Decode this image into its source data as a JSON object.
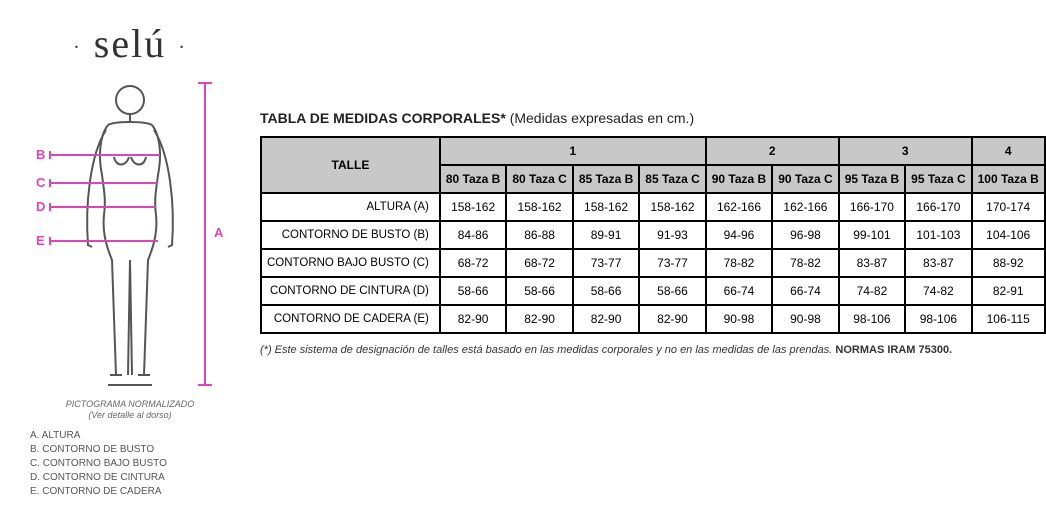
{
  "brand": "selú",
  "pictogram": {
    "caption_line1": "PICTOGRAMA NORMALIZADO",
    "caption_line2": "(Ver detalle al dorso)",
    "markers": {
      "A": "A",
      "B": "B",
      "C": "C",
      "D": "D",
      "E": "E"
    },
    "legend": [
      "A. ALTURA",
      "B. CONTORNO DE BUSTO",
      "C. CONTORNO BAJO BUSTO",
      "D. CONTORNO DE CINTURA",
      "E. CONTORNO DE CADERA"
    ],
    "accent_color": "#d946b8",
    "figure_stroke": "#555555"
  },
  "table": {
    "title_prefix": "TABLA DE MEDIDAS CORPORALES* ",
    "title_suffix": "(Medidas expresadas en cm.)",
    "talle_label": "TALLE",
    "header_bg": "#c8c8c8",
    "border_color": "#000000",
    "groups": [
      {
        "label": "1",
        "span": 4
      },
      {
        "label": "2",
        "span": 2
      },
      {
        "label": "3",
        "span": 2
      },
      {
        "label": "4",
        "span": 1
      }
    ],
    "subheaders": [
      "80 Taza B",
      "80 Taza C",
      "85 Taza B",
      "85 Taza C",
      "90 Taza B",
      "90 Taza C",
      "95 Taza B",
      "95 Taza C",
      "100 Taza B"
    ],
    "rows": [
      {
        "label": "ALTURA (A)",
        "values": [
          "158-162",
          "158-162",
          "158-162",
          "158-162",
          "162-166",
          "162-166",
          "166-170",
          "166-170",
          "170-174"
        ]
      },
      {
        "label": "CONTORNO DE BUSTO (B)",
        "values": [
          "84-86",
          "86-88",
          "89-91",
          "91-93",
          "94-96",
          "96-98",
          "99-101",
          "101-103",
          "104-106"
        ]
      },
      {
        "label": "CONTORNO BAJO BUSTO (C)",
        "values": [
          "68-72",
          "68-72",
          "73-77",
          "73-77",
          "78-82",
          "78-82",
          "83-87",
          "83-87",
          "88-92"
        ]
      },
      {
        "label": "CONTORNO DE CINTURA (D)",
        "values": [
          "58-66",
          "58-66",
          "58-66",
          "58-66",
          "66-74",
          "66-74",
          "74-82",
          "74-82",
          "82-91"
        ]
      },
      {
        "label": "CONTORNO DE CADERA (E)",
        "values": [
          "82-90",
          "82-90",
          "82-90",
          "82-90",
          "90-98",
          "90-98",
          "98-106",
          "98-106",
          "106-115"
        ]
      }
    ]
  },
  "footnote": {
    "text": "(*) Este sistema de designación de talles está basado en las medidas corporales y no en las medidas de las prendas. ",
    "norm": "NORMAS IRAM 75300."
  }
}
